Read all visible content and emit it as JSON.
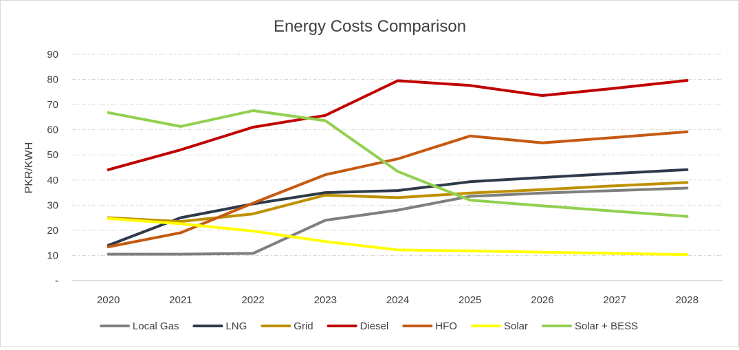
{
  "chart_data": {
    "type": "line",
    "title": "Energy Costs Comparison",
    "xlabel": "",
    "ylabel": "PKR/KWH",
    "categories": [
      "2020",
      "2021",
      "2022",
      "2023",
      "2024",
      "2025",
      "2026",
      "2027",
      "2028"
    ],
    "y_tick_labels": [
      "-",
      "10",
      "20",
      "30",
      "40",
      "50",
      "60",
      "70",
      "80",
      "90"
    ],
    "ylim": [
      0,
      90
    ],
    "grid": "horizontal-dashed",
    "legend_position": "bottom",
    "series": [
      {
        "name": "Local Gas",
        "color": "#7f7f7f",
        "values": [
          10.5,
          10.5,
          10.8,
          24,
          28,
          33.5,
          34.8,
          35.8,
          36.8
        ]
      },
      {
        "name": "LNG",
        "color": "#2e3a4a",
        "values": [
          14,
          25,
          30.5,
          35,
          35.8,
          39.3,
          41,
          42.6,
          44.1
        ]
      },
      {
        "name": "Grid",
        "color": "#bf9000",
        "values": [
          25,
          23.5,
          26.5,
          34,
          33,
          34.8,
          36.2,
          37.7,
          39
        ]
      },
      {
        "name": "Diesel",
        "color": "#c00000",
        "values": [
          44.1,
          52,
          61,
          65.7,
          79.5,
          77.6,
          73.6,
          76.5,
          79.6
        ]
      },
      {
        "name": "HFO",
        "color": "#c55a11",
        "values": [
          13.4,
          19,
          30.8,
          42.1,
          48.4,
          57.5,
          54.8,
          56.9,
          59.2
        ]
      },
      {
        "name": "Solar",
        "color": "#ffff00",
        "values": [
          24.7,
          22.6,
          19.7,
          15.5,
          12.2,
          11.8,
          11.3,
          10.8,
          10.3
        ]
      },
      {
        "name": "Solar + BESS",
        "color": "#92d050",
        "values": [
          66.8,
          61.3,
          67.6,
          63.6,
          43.4,
          32,
          29.7,
          27.6,
          25.5
        ]
      }
    ]
  }
}
